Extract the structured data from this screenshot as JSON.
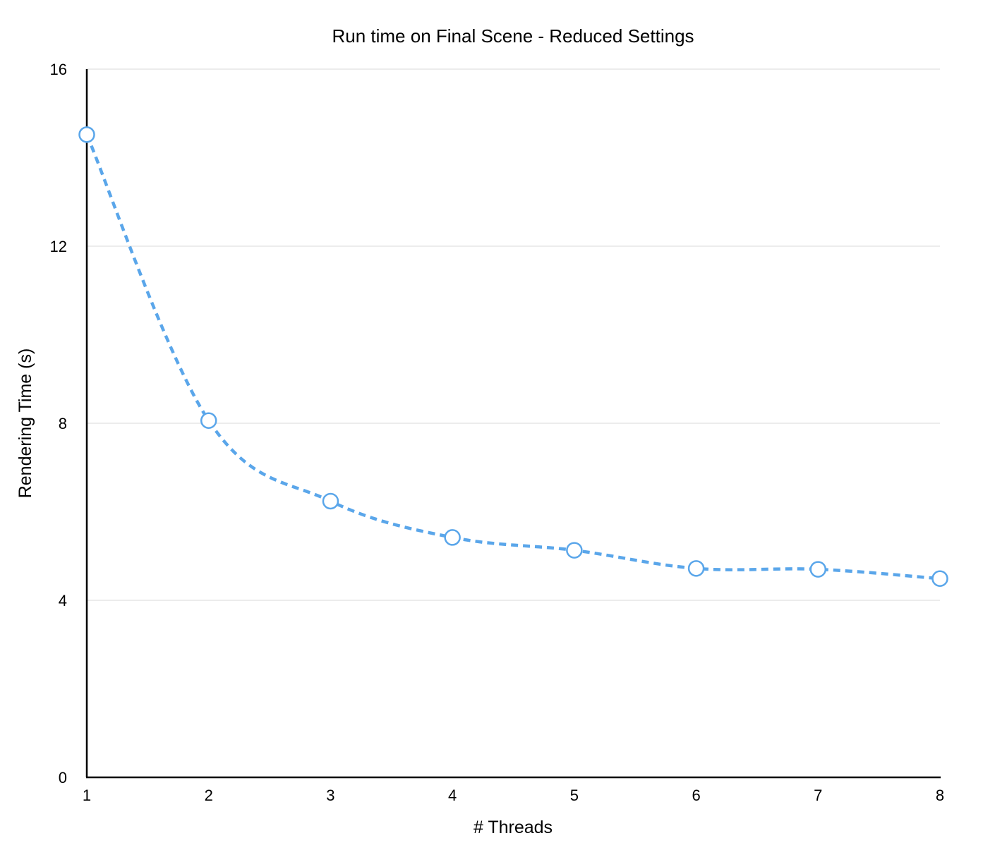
{
  "chart_data": {
    "type": "line",
    "title": "Run time on Final Scene - Reduced Settings",
    "xlabel": "# Threads",
    "ylabel": "Rendering Time (s)",
    "x": [
      1,
      2,
      3,
      4,
      5,
      6,
      7,
      8
    ],
    "x_tick_labels": [
      "1",
      "2",
      "3",
      "4",
      "5",
      "6",
      "7",
      "8"
    ],
    "xlim": [
      1,
      8
    ],
    "ylim": [
      0,
      16
    ],
    "y_ticks": [
      0,
      4,
      8,
      12,
      16
    ],
    "y_tick_labels": [
      "0",
      "4",
      "8",
      "12",
      "16"
    ],
    "grid": "horizontal",
    "legend": "none",
    "series": [
      {
        "values": [
          14.52,
          8.06,
          6.24,
          5.42,
          5.13,
          4.72,
          4.7,
          4.49
        ],
        "color": "#5aa6ea",
        "line_style": "dashed",
        "marker": "open-circle"
      }
    ]
  }
}
